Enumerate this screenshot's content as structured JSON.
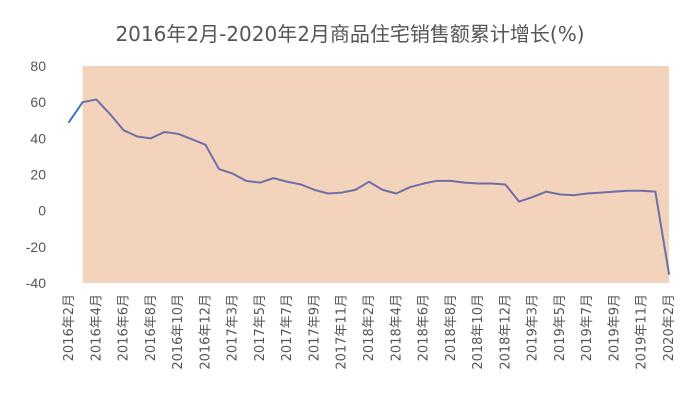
{
  "chart_data": {
    "type": "line",
    "title": "2016年2月-2020年2月商品住宅销售额累计增长(%)",
    "xlabel": "",
    "ylabel": "",
    "ylim": [
      -40,
      80
    ],
    "yticks": [
      80,
      60,
      40,
      20,
      0,
      -20,
      -40
    ],
    "grid": false,
    "legend": "none",
    "colors": {
      "line": "#6e6fa8",
      "line_first_segment": "#4472c4",
      "shaded_band": "#f4d3bd",
      "text": "#555555"
    },
    "shaded_band_range": [
      "2016年3月",
      "2020年2月"
    ],
    "x_tick_labels": [
      "2016年2月",
      "2016年4月",
      "2016年6月",
      "2016年8月",
      "2016年10月",
      "2016年12月",
      "2017年3月",
      "2017年5月",
      "2017年7月",
      "2017年9月",
      "2017年11月",
      "2018年2月",
      "2018年4月",
      "2018年6月",
      "2018年8月",
      "2018年10月",
      "2018年12月",
      "2019年3月",
      "2019年5月",
      "2019年7月",
      "2019年9月",
      "2019年11月",
      "2020年2月"
    ],
    "x": [
      "2016年2月",
      "2016年3月",
      "2016年4月",
      "2016年5月",
      "2016年6月",
      "2016年7月",
      "2016年8月",
      "2016年9月",
      "2016年10月",
      "2016年11月",
      "2016年12月",
      "2017年2月",
      "2017年3月",
      "2017年4月",
      "2017年5月",
      "2017年6月",
      "2017年7月",
      "2017年8月",
      "2017年9月",
      "2017年10月",
      "2017年11月",
      "2017年12月",
      "2018年2月",
      "2018年3月",
      "2018年4月",
      "2018年5月",
      "2018年6月",
      "2018年7月",
      "2018年8月",
      "2018年9月",
      "2018年10月",
      "2018年11月",
      "2018年12月",
      "2019年2月",
      "2019年3月",
      "2019年4月",
      "2019年5月",
      "2019年6月",
      "2019年7月",
      "2019年8月",
      "2019年9月",
      "2019年10月",
      "2019年11月",
      "2019年12月",
      "2020年2月"
    ],
    "series": [
      {
        "values": [
          49,
          60,
          61.5,
          53.5,
          44.5,
          41,
          40,
          43.5,
          42.5,
          39.5,
          36.5,
          23,
          20.5,
          16.5,
          15.5,
          18,
          16,
          14.5,
          11.5,
          9.5,
          10,
          11.5,
          16,
          11.5,
          9.5,
          13,
          15,
          16.5,
          16.5,
          15.5,
          15,
          15,
          14.5,
          5,
          7.5,
          10.5,
          9,
          8.5,
          9.5,
          10,
          10.5,
          11,
          11,
          10.5,
          -35
        ]
      }
    ]
  }
}
